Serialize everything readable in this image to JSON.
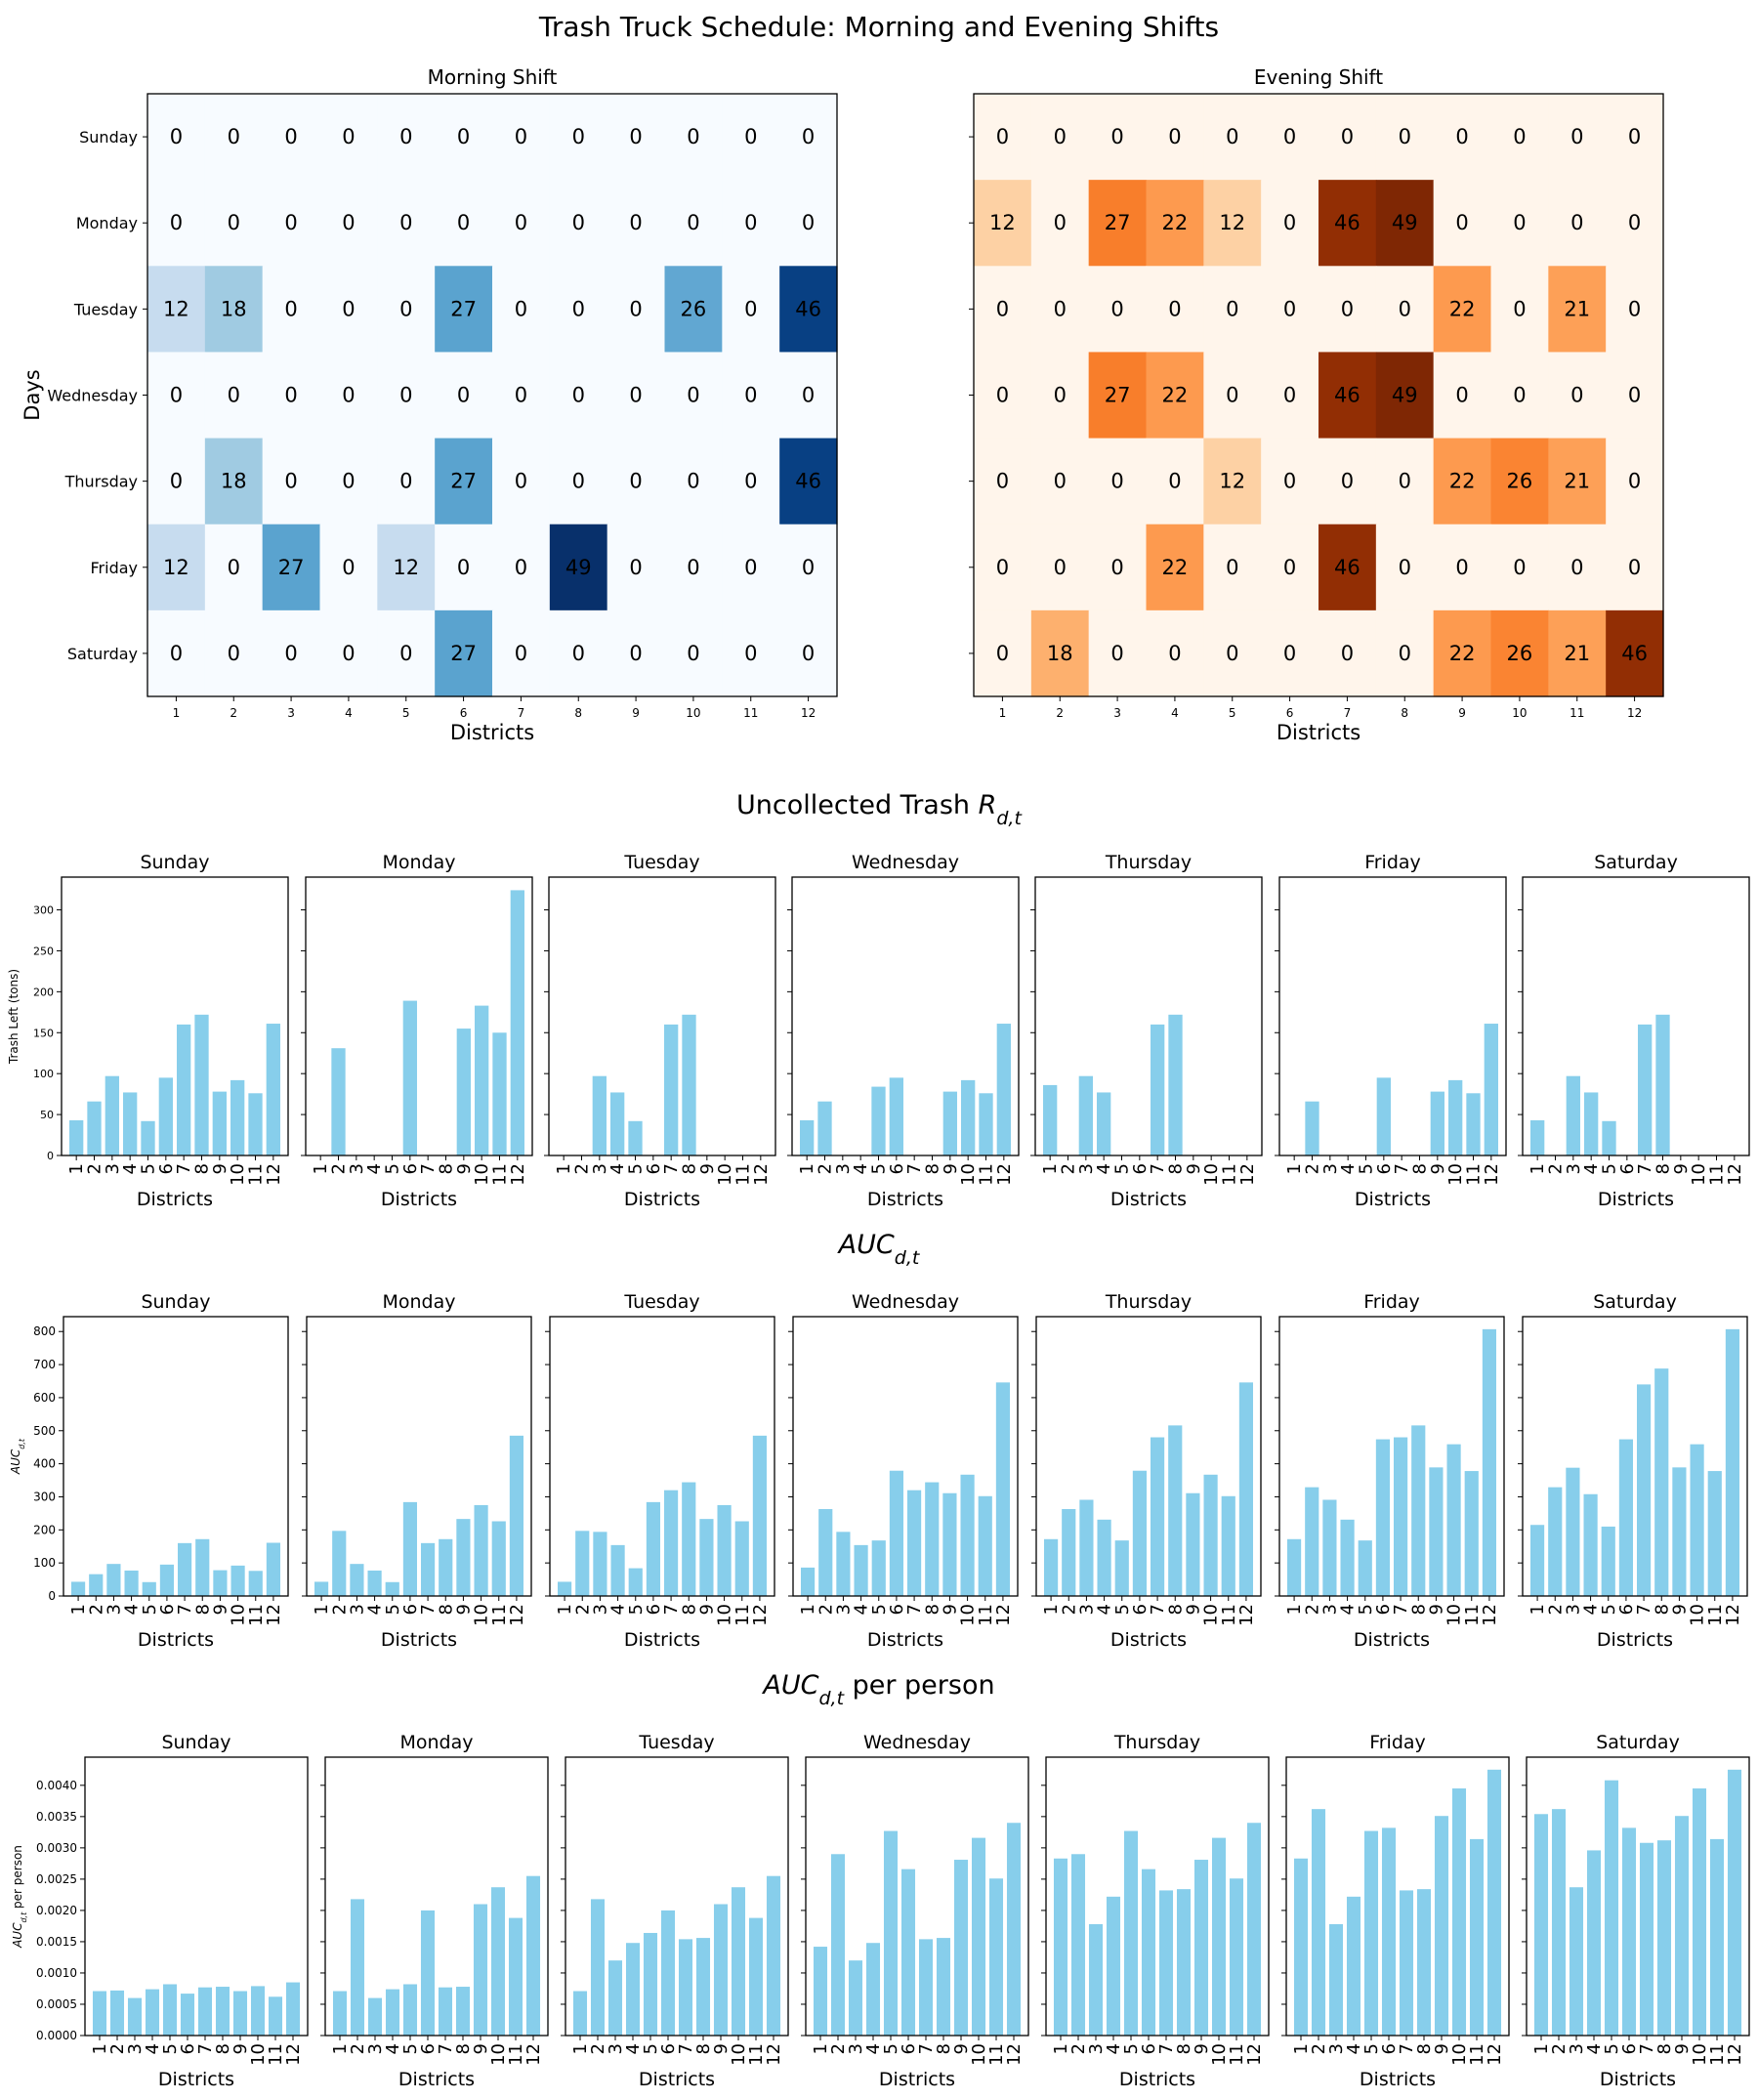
{
  "title": "Trash Truck Schedule: Morning and Evening Shifts",
  "days": [
    "Sunday",
    "Monday",
    "Tuesday",
    "Wednesday",
    "Thursday",
    "Friday",
    "Saturday"
  ],
  "districts": [
    "1",
    "2",
    "3",
    "4",
    "5",
    "6",
    "7",
    "8",
    "9",
    "10",
    "11",
    "12"
  ],
  "colors": {
    "bar": "#87CEEB",
    "morning_cmap": "Blues",
    "evening_cmap": "Oranges"
  },
  "section_titles": {
    "uncollected": "Uncollected Trash R_{d,t}",
    "auc": "AUC_{d,t}",
    "auc_pp": "AUC_{d,t} per person"
  },
  "chart_data": [
    {
      "type": "heatmap",
      "title": "Morning Shift",
      "xlabel": "Districts",
      "ylabel": "Days",
      "colormap": "Blues",
      "rows": [
        "Sunday",
        "Monday",
        "Tuesday",
        "Wednesday",
        "Thursday",
        "Friday",
        "Saturday"
      ],
      "columns": [
        "1",
        "2",
        "3",
        "4",
        "5",
        "6",
        "7",
        "8",
        "9",
        "10",
        "11",
        "12"
      ],
      "values": [
        [
          0,
          0,
          0,
          0,
          0,
          0,
          0,
          0,
          0,
          0,
          0,
          0
        ],
        [
          0,
          0,
          0,
          0,
          0,
          0,
          0,
          0,
          0,
          0,
          0,
          0
        ],
        [
          12,
          18,
          0,
          0,
          0,
          27,
          0,
          0,
          0,
          26,
          0,
          46
        ],
        [
          0,
          0,
          0,
          0,
          0,
          0,
          0,
          0,
          0,
          0,
          0,
          0
        ],
        [
          0,
          18,
          0,
          0,
          0,
          27,
          0,
          0,
          0,
          0,
          0,
          46
        ],
        [
          12,
          0,
          27,
          0,
          12,
          0,
          0,
          49,
          0,
          0,
          0,
          0
        ],
        [
          0,
          0,
          0,
          0,
          0,
          27,
          0,
          0,
          0,
          0,
          0,
          0
        ]
      ]
    },
    {
      "type": "heatmap",
      "title": "Evening Shift",
      "xlabel": "Districts",
      "ylabel": "",
      "colormap": "Oranges",
      "rows": [
        "Sunday",
        "Monday",
        "Tuesday",
        "Wednesday",
        "Thursday",
        "Friday",
        "Saturday"
      ],
      "columns": [
        "1",
        "2",
        "3",
        "4",
        "5",
        "6",
        "7",
        "8",
        "9",
        "10",
        "11",
        "12"
      ],
      "values": [
        [
          0,
          0,
          0,
          0,
          0,
          0,
          0,
          0,
          0,
          0,
          0,
          0
        ],
        [
          12,
          0,
          27,
          22,
          12,
          0,
          46,
          49,
          0,
          0,
          0,
          0
        ],
        [
          0,
          0,
          0,
          0,
          0,
          0,
          0,
          0,
          22,
          0,
          21,
          0
        ],
        [
          0,
          0,
          27,
          22,
          0,
          0,
          46,
          49,
          0,
          0,
          0,
          0
        ],
        [
          0,
          0,
          0,
          0,
          12,
          0,
          0,
          0,
          22,
          26,
          21,
          0
        ],
        [
          0,
          0,
          0,
          22,
          0,
          0,
          46,
          0,
          0,
          0,
          0,
          0
        ],
        [
          0,
          18,
          0,
          0,
          0,
          0,
          0,
          0,
          22,
          26,
          21,
          46
        ]
      ]
    },
    {
      "type": "bar",
      "section": "uncollected",
      "xlabel": "Districts",
      "ylabel": "Trash Left (tons)",
      "ylim": [
        0,
        340
      ],
      "yticks": [
        0,
        50,
        100,
        150,
        200,
        250,
        300
      ],
      "ytick_labels": [
        "0",
        "50",
        "100",
        "150",
        "200",
        "250",
        "300"
      ],
      "categories": [
        "1",
        "2",
        "3",
        "4",
        "5",
        "6",
        "7",
        "8",
        "9",
        "10",
        "11",
        "12"
      ],
      "series": [
        {
          "name": "Sunday",
          "values": [
            43,
            66,
            97,
            77,
            42,
            95,
            160,
            172,
            78,
            92,
            76,
            161
          ]
        },
        {
          "name": "Monday",
          "values": [
            0,
            131,
            0,
            0,
            0,
            189,
            0,
            0,
            155,
            183,
            150,
            324
          ]
        },
        {
          "name": "Tuesday",
          "values": [
            0,
            0,
            97,
            77,
            42,
            0,
            160,
            172,
            0,
            0,
            0,
            0
          ]
        },
        {
          "name": "Wednesday",
          "values": [
            43,
            66,
            0,
            0,
            84,
            95,
            0,
            0,
            78,
            92,
            76,
            161
          ]
        },
        {
          "name": "Thursday",
          "values": [
            86,
            0,
            97,
            77,
            0,
            0,
            160,
            172,
            0,
            0,
            0,
            0
          ]
        },
        {
          "name": "Friday",
          "values": [
            0,
            66,
            0,
            0,
            0,
            95,
            0,
            0,
            78,
            92,
            76,
            161
          ]
        },
        {
          "name": "Saturday",
          "values": [
            43,
            0,
            97,
            77,
            42,
            0,
            160,
            172,
            0,
            0,
            0,
            0
          ]
        }
      ]
    },
    {
      "type": "bar",
      "section": "auc",
      "xlabel": "Districts",
      "ylabel": "AUC_{d,t}",
      "ylim": [
        0,
        845
      ],
      "yticks": [
        0,
        100,
        200,
        300,
        400,
        500,
        600,
        700,
        800
      ],
      "ytick_labels": [
        "0",
        "100",
        "200",
        "300",
        "400",
        "500",
        "600",
        "700",
        "800"
      ],
      "categories": [
        "1",
        "2",
        "3",
        "4",
        "5",
        "6",
        "7",
        "8",
        "9",
        "10",
        "11",
        "12"
      ],
      "series": [
        {
          "name": "Sunday",
          "values": [
            43,
            66,
            97,
            77,
            42,
            95,
            160,
            172,
            78,
            92,
            76,
            161
          ]
        },
        {
          "name": "Monday",
          "values": [
            43,
            197,
            97,
            77,
            42,
            284,
            160,
            172,
            233,
            275,
            226,
            485
          ]
        },
        {
          "name": "Tuesday",
          "values": [
            43,
            197,
            194,
            154,
            84,
            284,
            320,
            344,
            233,
            275,
            226,
            485
          ]
        },
        {
          "name": "Wednesday",
          "values": [
            86,
            263,
            194,
            154,
            168,
            379,
            320,
            344,
            311,
            367,
            302,
            646
          ]
        },
        {
          "name": "Thursday",
          "values": [
            172,
            263,
            291,
            231,
            168,
            379,
            480,
            516,
            311,
            367,
            302,
            646
          ]
        },
        {
          "name": "Friday",
          "values": [
            172,
            329,
            291,
            231,
            168,
            474,
            480,
            516,
            389,
            459,
            378,
            807
          ]
        },
        {
          "name": "Saturday",
          "values": [
            215,
            329,
            388,
            308,
            210,
            474,
            640,
            688,
            389,
            459,
            378,
            807
          ]
        }
      ]
    },
    {
      "type": "bar",
      "section": "auc_pp",
      "xlabel": "Districts",
      "ylabel": "AUC_{d,t} per person",
      "ylim": [
        0,
        0.00445
      ],
      "yticks": [
        0,
        0.0005,
        0.001,
        0.0015,
        0.002,
        0.0025,
        0.003,
        0.0035,
        0.004
      ],
      "ytick_labels": [
        "0.0000",
        "0.0005",
        "0.0010",
        "0.0015",
        "0.0020",
        "0.0025",
        "0.0030",
        "0.0035",
        "0.0040"
      ],
      "categories": [
        "1",
        "2",
        "3",
        "4",
        "5",
        "6",
        "7",
        "8",
        "9",
        "10",
        "11",
        "12"
      ],
      "series": [
        {
          "name": "Sunday",
          "values": [
            0.00071,
            0.00072,
            0.0006,
            0.00074,
            0.00082,
            0.00067,
            0.00077,
            0.00078,
            0.00071,
            0.00079,
            0.00062,
            0.00085
          ]
        },
        {
          "name": "Monday",
          "values": [
            0.00071,
            0.00218,
            0.0006,
            0.00074,
            0.00082,
            0.002,
            0.00077,
            0.00078,
            0.0021,
            0.00237,
            0.00188,
            0.00255
          ]
        },
        {
          "name": "Tuesday",
          "values": [
            0.00071,
            0.00218,
            0.0012,
            0.00148,
            0.00164,
            0.002,
            0.00154,
            0.00156,
            0.0021,
            0.00237,
            0.00188,
            0.00255
          ]
        },
        {
          "name": "Wednesday",
          "values": [
            0.00142,
            0.0029,
            0.0012,
            0.00148,
            0.00327,
            0.00266,
            0.00154,
            0.00156,
            0.00281,
            0.00316,
            0.00251,
            0.0034
          ]
        },
        {
          "name": "Thursday",
          "values": [
            0.00283,
            0.0029,
            0.00178,
            0.00222,
            0.00327,
            0.00266,
            0.00232,
            0.00234,
            0.00281,
            0.00316,
            0.00251,
            0.0034
          ]
        },
        {
          "name": "Friday",
          "values": [
            0.00283,
            0.00362,
            0.00178,
            0.00222,
            0.00327,
            0.00332,
            0.00232,
            0.00234,
            0.00351,
            0.00395,
            0.00314,
            0.00425
          ]
        },
        {
          "name": "Saturday",
          "values": [
            0.00354,
            0.00362,
            0.00237,
            0.00296,
            0.00408,
            0.00332,
            0.00308,
            0.00312,
            0.00351,
            0.00395,
            0.00314,
            0.00425
          ]
        }
      ]
    }
  ]
}
